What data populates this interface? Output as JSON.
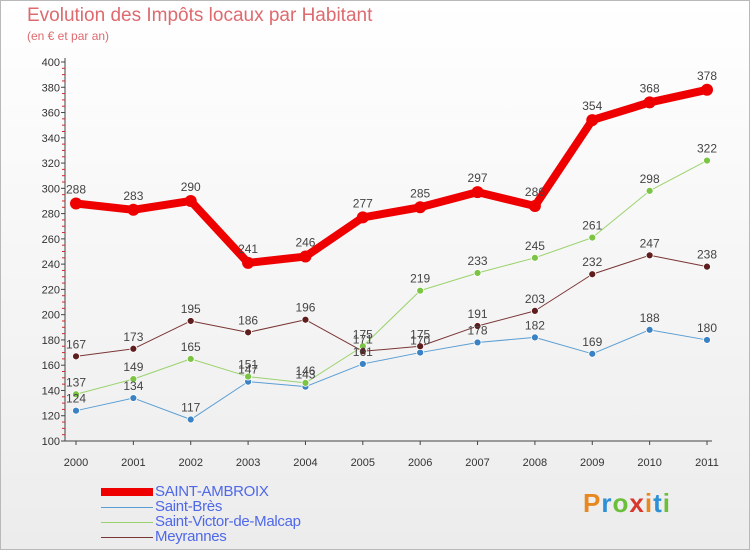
{
  "header": {
    "title": "Evolution des Impôts locaux par Habitant",
    "subtitle": "(en € et par an)"
  },
  "logo": {
    "text": "Proxiti",
    "colors": [
      "#e8891f",
      "#2d8fd6",
      "#6cbf3a",
      "#d9372b"
    ]
  },
  "chart_data": {
    "type": "line",
    "title": "Evolution des Impôts locaux par Habitant",
    "subtitle": "(en € et par an)",
    "xlabel": "",
    "ylabel": "",
    "ylim": [
      100,
      400
    ],
    "yticks": [
      100,
      120,
      140,
      160,
      180,
      200,
      220,
      240,
      260,
      280,
      300,
      320,
      340,
      360,
      380,
      400
    ],
    "grid": false,
    "legend_position": "bottom-left",
    "x": [
      "2000",
      "2001",
      "2002",
      "2003",
      "2004",
      "2005",
      "2006",
      "2007",
      "2008",
      "2009",
      "2010",
      "2011"
    ],
    "series": [
      {
        "name": "Saint-Brès",
        "color": "#5b9ed3",
        "point_color": "#3b82c4",
        "width": 1,
        "radius": 3.5,
        "values": [
          124,
          134,
          117,
          147,
          143,
          161,
          170,
          178,
          182,
          169,
          188,
          180
        ],
        "labels": [
          "124",
          "134",
          "117",
          "147",
          "143",
          "161",
          "170",
          "178",
          "182",
          "169",
          "188",
          "180"
        ]
      },
      {
        "name": "Saint-Victor-de-Malcap",
        "color": "#9ad36c",
        "point_color": "#7cc443",
        "width": 1,
        "radius": 3.5,
        "values": [
          137,
          149,
          165,
          151,
          146,
          175,
          219,
          233,
          245,
          261,
          298,
          322
        ],
        "labels": [
          "137",
          "149",
          "165",
          "151",
          "146",
          "175",
          "219",
          "233",
          "245",
          "261",
          "298",
          "322"
        ]
      },
      {
        "name": "Meyrannes",
        "color": "#7a3535",
        "point_color": "#5e1e1e",
        "width": 1,
        "radius": 3.5,
        "values": [
          167,
          173,
          195,
          186,
          196,
          171,
          175,
          191,
          203,
          232,
          247,
          238
        ],
        "labels": [
          "167",
          "173",
          "195",
          "186",
          "196",
          "171",
          "175",
          "191",
          "203",
          "232",
          "247",
          "238"
        ]
      },
      {
        "name": "SAINT-AMBROIX",
        "color": "#ee0000",
        "point_color": "#ee0000",
        "width": 8,
        "radius": 6,
        "values": [
          288,
          283,
          290,
          241,
          246,
          277,
          285,
          297,
          286,
          354,
          368,
          378
        ],
        "labels": [
          "288",
          "283",
          "290",
          "241",
          "246",
          "277",
          "285",
          "297",
          "286",
          "354",
          "368",
          "378"
        ]
      }
    ]
  },
  "legend": [
    {
      "label": "SAINT-AMBROIX",
      "color": "#ee0000",
      "width": 8
    },
    {
      "label": "Saint-Brès",
      "color": "#5b9ed3",
      "width": 1
    },
    {
      "label": "Saint-Victor-de-Malcap",
      "color": "#9ad36c",
      "width": 1
    },
    {
      "label": "Meyrannes",
      "color": "#7a3535",
      "width": 1
    }
  ]
}
